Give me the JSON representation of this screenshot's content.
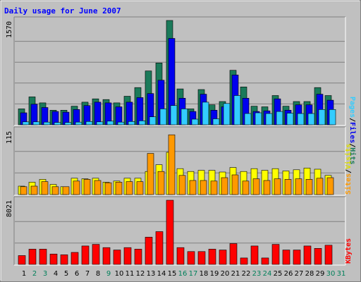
{
  "chart_data": [
    {
      "type": "bar",
      "title": "Daily usage for June 2007",
      "ymax_label": "1570",
      "ylim": [
        0,
        1570
      ],
      "right_label_parts": [
        "Pages",
        "/",
        "Files",
        "/",
        "Hits"
      ],
      "grid": true,
      "categories": [
        "1",
        "2",
        "3",
        "4",
        "5",
        "6",
        "7",
        "8",
        "9",
        "10",
        "11",
        "12",
        "13",
        "14",
        "15",
        "16",
        "17",
        "18",
        "19",
        "20",
        "21",
        "22",
        "23",
        "24",
        "25",
        "26",
        "27",
        "28",
        "29",
        "30",
        "31"
      ],
      "series": [
        {
          "name": "Hits",
          "values": [
            240,
            420,
            330,
            220,
            220,
            280,
            340,
            390,
            380,
            330,
            430,
            560,
            810,
            930,
            1570,
            540,
            240,
            530,
            300,
            350,
            820,
            570,
            280,
            270,
            440,
            280,
            350,
            350,
            560,
            440,
            0
          ]
        },
        {
          "name": "Files",
          "values": [
            180,
            310,
            260,
            200,
            190,
            230,
            290,
            340,
            330,
            270,
            340,
            410,
            470,
            670,
            1300,
            400,
            200,
            460,
            220,
            270,
            750,
            400,
            200,
            210,
            390,
            220,
            300,
            300,
            460,
            370,
            0
          ]
        },
        {
          "name": "Pages",
          "values": [
            45,
            45,
            40,
            35,
            35,
            40,
            50,
            45,
            55,
            40,
            50,
            60,
            120,
            240,
            290,
            240,
            85,
            340,
            90,
            320,
            440,
            170,
            180,
            170,
            200,
            175,
            170,
            170,
            230,
            230,
            0
          ]
        }
      ],
      "colors": {
        "Hits": "#1b7a5a",
        "Files": "#0000ee",
        "Pages": "#33ccff"
      }
    },
    {
      "type": "bar",
      "ymax_label": "115",
      "ylim": [
        0,
        115
      ],
      "right_label_parts": [
        "Sites",
        "/",
        "Visits"
      ],
      "grid": true,
      "categories": [
        "1",
        "2",
        "3",
        "4",
        "5",
        "6",
        "7",
        "8",
        "9",
        "10",
        "11",
        "12",
        "13",
        "14",
        "15",
        "16",
        "17",
        "18",
        "19",
        "20",
        "21",
        "22",
        "23",
        "24",
        "25",
        "26",
        "27",
        "28",
        "29",
        "30",
        "31"
      ],
      "series": [
        {
          "name": "Visits",
          "values": [
            15,
            22,
            27,
            18,
            14,
            29,
            28,
            29,
            22,
            24,
            29,
            29,
            41,
            53,
            75,
            46,
            41,
            43,
            43,
            40,
            48,
            41,
            46,
            43,
            46,
            42,
            44,
            47,
            45,
            34,
            0
          ]
        },
        {
          "name": "Sites",
          "values": [
            14,
            15,
            23,
            14,
            14,
            24,
            27,
            25,
            21,
            22,
            23,
            23,
            73,
            41,
            106,
            34,
            25,
            25,
            24,
            30,
            35,
            24,
            28,
            25,
            28,
            27,
            28,
            27,
            29,
            30,
            0
          ]
        }
      ],
      "colors": {
        "Visits": "#ffff00",
        "Sites": "#ff9900"
      }
    },
    {
      "type": "bar",
      "ymax_label": "8021",
      "ylim": [
        0,
        8021
      ],
      "right_label_parts": [
        "KBytes"
      ],
      "grid": true,
      "categories": [
        "1",
        "2",
        "3",
        "4",
        "5",
        "6",
        "7",
        "8",
        "9",
        "10",
        "11",
        "12",
        "13",
        "14",
        "15",
        "16",
        "17",
        "18",
        "19",
        "20",
        "21",
        "22",
        "23",
        "24",
        "25",
        "26",
        "27",
        "28",
        "29",
        "30",
        "31"
      ],
      "series": [
        {
          "name": "KBytes",
          "values": [
            1100,
            1900,
            1900,
            1300,
            1200,
            1500,
            2300,
            2500,
            2100,
            1800,
            2100,
            1900,
            3400,
            4100,
            8021,
            2100,
            1600,
            1600,
            1900,
            1800,
            2600,
            800,
            2300,
            800,
            2500,
            1800,
            1800,
            2300,
            2000,
            2400,
            0
          ]
        }
      ],
      "colors": {
        "KBytes": "#ff0000"
      }
    }
  ],
  "weekend_days": [
    2,
    3,
    9,
    16,
    17,
    23,
    24,
    30,
    31
  ],
  "colors": {
    "title": "#0000ff",
    "weekday_label": "#000000",
    "weekend_label": "#00805a",
    "panel_bg": "#c0c0c0",
    "grid": "#808080"
  }
}
